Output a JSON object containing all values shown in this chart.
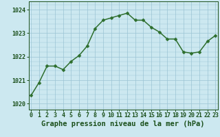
{
  "x": [
    0,
    1,
    2,
    3,
    4,
    5,
    6,
    7,
    8,
    9,
    10,
    11,
    12,
    13,
    14,
    15,
    16,
    17,
    18,
    19,
    20,
    21,
    22,
    23
  ],
  "y": [
    1020.35,
    1020.9,
    1021.6,
    1021.6,
    1021.45,
    1021.8,
    1022.05,
    1022.45,
    1023.2,
    1023.55,
    1023.65,
    1023.75,
    1023.85,
    1023.55,
    1023.55,
    1023.25,
    1023.05,
    1022.75,
    1022.75,
    1022.2,
    1022.15,
    1022.2,
    1022.65,
    1022.9
  ],
  "line_color": "#2d6e2d",
  "marker_color": "#2d6e2d",
  "bg_color": "#cce8f0",
  "grid_color": "#9ac4d4",
  "xlabel": "Graphe pression niveau de la mer (hPa)",
  "xlabel_color": "#1a4f1a",
  "tick_color": "#1a4f1a",
  "ylim": [
    1019.75,
    1024.35
  ],
  "yticks": [
    1020,
    1021,
    1022,
    1023,
    1024
  ],
  "xticks": [
    0,
    1,
    2,
    3,
    4,
    5,
    6,
    7,
    8,
    9,
    10,
    11,
    12,
    13,
    14,
    15,
    16,
    17,
    18,
    19,
    20,
    21,
    22,
    23
  ],
  "xlim": [
    -0.3,
    23.3
  ],
  "xlabel_fontsize": 7.5,
  "tick_fontsize": 6.0,
  "line_width": 1.1,
  "marker_size": 2.5
}
